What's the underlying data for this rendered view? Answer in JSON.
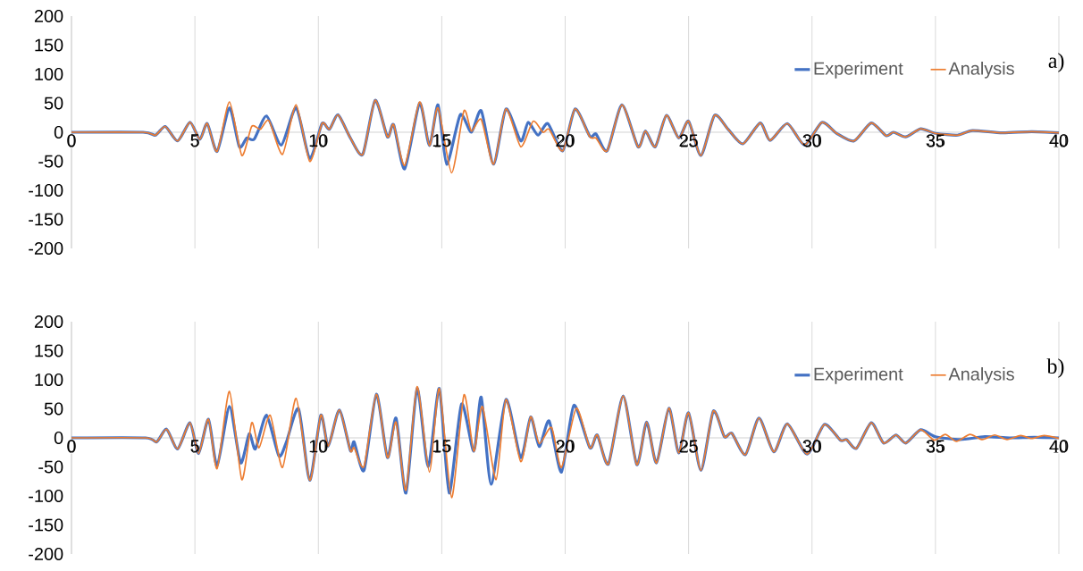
{
  "chart_data": [
    {
      "type": "line",
      "annotations": [
        "a)"
      ],
      "xlim": [
        0,
        40
      ],
      "ylim": [
        -200,
        200
      ],
      "xticks": [
        0,
        5,
        10,
        15,
        20,
        25,
        30,
        35,
        40
      ],
      "yticks": [
        -200,
        -150,
        -100,
        -50,
        0,
        50,
        100,
        150,
        200
      ],
      "grid": "x",
      "legend": "top right",
      "series": [
        {
          "name": "Experiment",
          "color": "#4472c4",
          "x": [
            0,
            2.9,
            3.4,
            3.8,
            4.3,
            4.8,
            5.2,
            5.5,
            5.9,
            6.4,
            6.8,
            7.1,
            7.4,
            7.9,
            8.5,
            9.1,
            9.65,
            10.15,
            10.45,
            10.8,
            11.3,
            11.8,
            12.3,
            12.8,
            13.05,
            13.5,
            14.1,
            14.5,
            14.85,
            15.2,
            15.75,
            16.2,
            16.6,
            17.1,
            17.6,
            18.2,
            18.5,
            18.9,
            19.3,
            19.9,
            20.4,
            21.0,
            21.25,
            21.7,
            22.3,
            22.95,
            23.25,
            23.65,
            24.1,
            24.6,
            25.0,
            25.5,
            26.05,
            26.6,
            27.2,
            27.9,
            28.3,
            29.0,
            29.7,
            30.4,
            31.0,
            31.7,
            32.4,
            33.0,
            33.3,
            33.8,
            34.4,
            35.0,
            35.9,
            36.5,
            37.7,
            38.9,
            40
          ],
          "values": [
            0,
            0,
            -5,
            10,
            -15,
            17,
            -12,
            15,
            -33,
            42,
            -25,
            -10,
            -12,
            28,
            -22,
            42,
            -45,
            15,
            5,
            30,
            -10,
            -38,
            55,
            -8,
            13,
            -63,
            50,
            -23,
            47,
            -55,
            30,
            0,
            37,
            -55,
            40,
            -15,
            17,
            -5,
            15,
            -32,
            40,
            -7,
            -3,
            -32,
            47,
            -25,
            2,
            -25,
            29,
            -10,
            19,
            -40,
            29,
            5,
            -20,
            16,
            -14,
            15,
            -22,
            17,
            -2,
            -15,
            16,
            -6,
            0,
            -8,
            6,
            -2,
            -5,
            3,
            -1,
            1,
            -1
          ]
        },
        {
          "name": "Analysis",
          "color": "#ed7d31",
          "x": [
            0,
            2.9,
            3.4,
            3.8,
            4.3,
            4.8,
            5.2,
            5.5,
            5.9,
            6.4,
            6.9,
            7.3,
            7.65,
            8.0,
            8.55,
            9.1,
            9.65,
            10.15,
            10.45,
            10.8,
            11.3,
            11.8,
            12.3,
            12.8,
            13.05,
            13.5,
            14.1,
            14.5,
            14.85,
            15.4,
            15.9,
            16.2,
            16.6,
            17.1,
            17.6,
            18.2,
            18.7,
            19.1,
            19.35,
            19.9,
            20.4,
            21.0,
            21.25,
            21.7,
            22.3,
            22.95,
            23.25,
            23.65,
            24.1,
            24.6,
            25.0,
            25.5,
            26.05,
            26.6,
            27.2,
            27.9,
            28.3,
            29.0,
            29.7,
            30.4,
            31.0,
            31.7,
            32.4,
            33.0,
            33.3,
            33.8,
            34.4,
            35.0,
            35.9,
            36.5,
            37.7,
            38.9,
            40
          ],
          "values": [
            0,
            0,
            -5,
            10,
            -15,
            17,
            -12,
            15,
            -33,
            52,
            -40,
            10,
            5,
            20,
            -38,
            47,
            -50,
            15,
            5,
            30,
            -10,
            -38,
            55,
            -8,
            13,
            -57,
            52,
            -23,
            42,
            -70,
            37,
            2,
            22,
            -55,
            40,
            -25,
            19,
            0,
            5,
            -32,
            40,
            -8,
            -10,
            -32,
            47,
            -25,
            2,
            -25,
            29,
            -10,
            19,
            -40,
            29,
            5,
            -20,
            16,
            -14,
            15,
            -22,
            17,
            -2,
            -15,
            16,
            -6,
            0,
            -8,
            6,
            -2,
            -5,
            3,
            -1,
            1,
            -1
          ]
        }
      ]
    },
    {
      "type": "line",
      "annotations": [
        "b)"
      ],
      "xlim": [
        0,
        40
      ],
      "ylim": [
        -200,
        200
      ],
      "xticks": [
        0,
        5,
        10,
        15,
        20,
        25,
        30,
        35,
        40
      ],
      "yticks": [
        -200,
        -150,
        -100,
        -50,
        0,
        50,
        100,
        150,
        200
      ],
      "grid": "x",
      "legend": "top right",
      "series": [
        {
          "name": "Experiment",
          "color": "#4472c4",
          "x": [
            0,
            3.0,
            3.45,
            3.85,
            4.3,
            4.8,
            5.15,
            5.55,
            5.9,
            6.4,
            6.85,
            7.2,
            7.45,
            7.9,
            8.4,
            8.7,
            9.2,
            9.65,
            10.1,
            10.4,
            10.85,
            11.3,
            11.45,
            11.85,
            12.35,
            12.8,
            13.15,
            13.55,
            14.0,
            14.45,
            14.9,
            15.3,
            15.8,
            16.3,
            16.6,
            17.0,
            17.6,
            18.2,
            18.6,
            18.95,
            19.35,
            19.85,
            20.35,
            21.0,
            21.3,
            21.75,
            22.35,
            22.9,
            23.3,
            23.7,
            24.2,
            24.6,
            25.0,
            25.5,
            26.0,
            26.45,
            26.75,
            27.3,
            27.85,
            28.45,
            29.0,
            29.8,
            30.5,
            31.15,
            31.4,
            31.8,
            32.4,
            32.9,
            33.4,
            33.8,
            34.4,
            35.0,
            36.0,
            37.0,
            38.0,
            39.0,
            40
          ],
          "values": [
            0,
            0,
            -7,
            15,
            -19,
            26,
            -27,
            32,
            -48,
            54,
            -43,
            7,
            -19,
            39,
            -31,
            -8,
            50,
            -73,
            39,
            -14,
            48,
            -22,
            -7,
            -56,
            75,
            -34,
            34,
            -95,
            85,
            -50,
            85,
            -95,
            58,
            -23,
            70,
            -80,
            66,
            -34,
            36,
            -15,
            29,
            -59,
            56,
            -17,
            5,
            -45,
            72,
            -46,
            27,
            -43,
            51,
            -26,
            43,
            -56,
            46,
            2,
            8,
            -29,
            34,
            -24,
            24,
            -28,
            23,
            -4,
            -3,
            -18,
            26,
            -9,
            5,
            -9,
            14,
            2,
            -3,
            2,
            0,
            1,
            0
          ]
        },
        {
          "name": "Analysis",
          "color": "#ed7d31",
          "x": [
            0,
            3.0,
            3.45,
            3.85,
            4.3,
            4.8,
            5.15,
            5.55,
            5.9,
            6.4,
            6.9,
            7.3,
            7.6,
            8.05,
            8.55,
            9.1,
            9.65,
            10.1,
            10.4,
            10.85,
            11.3,
            11.45,
            11.85,
            12.35,
            12.8,
            13.15,
            13.55,
            14.0,
            14.5,
            14.9,
            15.4,
            15.9,
            16.3,
            16.65,
            17.2,
            17.6,
            18.2,
            18.6,
            18.95,
            19.45,
            19.85,
            20.45,
            21.0,
            21.3,
            21.75,
            22.35,
            22.9,
            23.3,
            23.7,
            24.2,
            24.6,
            25.0,
            25.5,
            26.0,
            26.45,
            26.75,
            27.3,
            27.85,
            28.45,
            29.0,
            29.8,
            30.5,
            31.15,
            31.4,
            31.8,
            32.4,
            32.9,
            33.4,
            33.8,
            34.4,
            34.95,
            35.4,
            35.85,
            36.4,
            36.9,
            37.4,
            37.9,
            38.45,
            38.9,
            39.4,
            40
          ],
          "values": [
            0,
            0,
            -7,
            15,
            -19,
            26,
            -27,
            32,
            -53,
            80,
            -72,
            26,
            -17,
            39,
            -51,
            68,
            -73,
            39,
            -14,
            48,
            -22,
            -17,
            -49,
            75,
            -34,
            27,
            -90,
            88,
            -59,
            85,
            -103,
            74,
            -23,
            54,
            -72,
            66,
            -41,
            36,
            -10,
            18,
            -51,
            51,
            -17,
            5,
            -45,
            72,
            -46,
            27,
            -43,
            51,
            -26,
            43,
            -56,
            46,
            2,
            8,
            -29,
            34,
            -24,
            24,
            -28,
            23,
            -4,
            -3,
            -18,
            26,
            -9,
            5,
            -9,
            14,
            -4,
            6,
            -6,
            6,
            -3,
            5,
            -3,
            4,
            -1,
            4,
            -1
          ]
        }
      ]
    }
  ]
}
